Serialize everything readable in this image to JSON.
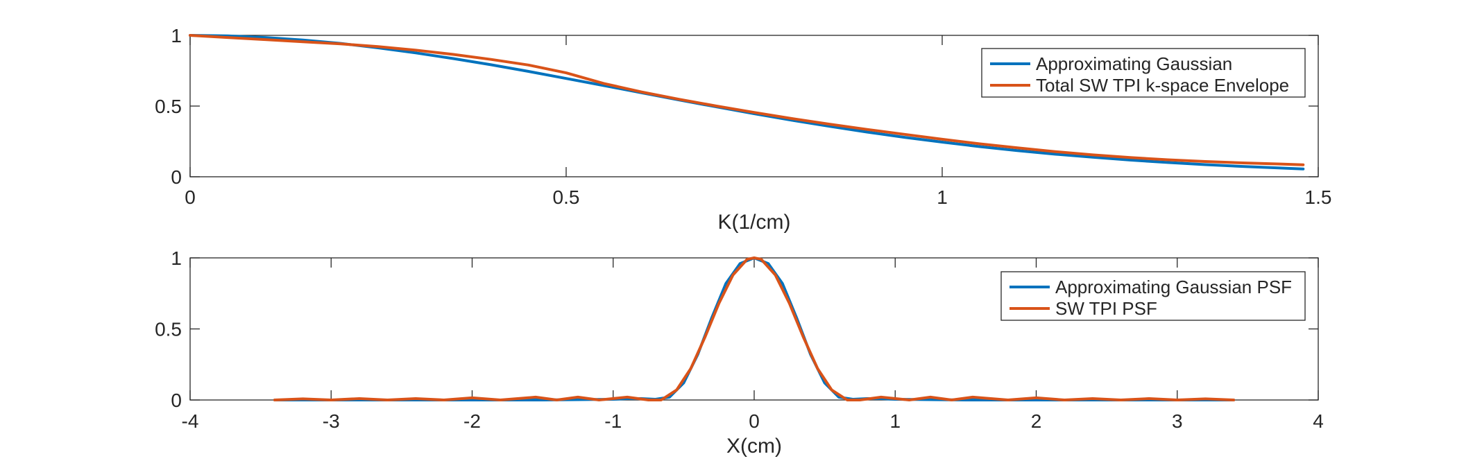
{
  "colors": {
    "blue": "#0072BD",
    "orange": "#D95319",
    "axis": "#262626",
    "background": "#ffffff"
  },
  "chart_data": [
    {
      "type": "line",
      "xlabel": "K(1/cm)",
      "ylabel": "",
      "xlim": [
        0,
        1.5
      ],
      "ylim": [
        0,
        1
      ],
      "xticks": [
        0,
        0.5,
        1,
        1.5
      ],
      "xtick_labels": [
        "0",
        "0.5",
        "1",
        "1.5"
      ],
      "yticks": [
        0,
        0.5,
        1
      ],
      "ytick_labels": [
        "0",
        "0.5",
        "1"
      ],
      "grid": false,
      "legend_location": "top-right",
      "series": [
        {
          "name": "Approximating Gaussian",
          "color": "#0072BD",
          "x": [
            0,
            0.05,
            0.1,
            0.15,
            0.2,
            0.25,
            0.3,
            0.35,
            0.4,
            0.45,
            0.5,
            0.55,
            0.6,
            0.65,
            0.7,
            0.75,
            0.8,
            0.85,
            0.9,
            0.95,
            1.0,
            1.05,
            1.1,
            1.15,
            1.2,
            1.25,
            1.3,
            1.35,
            1.4,
            1.45,
            1.48
          ],
          "y": [
            1.0,
            0.996,
            0.985,
            0.967,
            0.943,
            0.912,
            0.876,
            0.836,
            0.792,
            0.745,
            0.695,
            0.645,
            0.594,
            0.543,
            0.494,
            0.446,
            0.4,
            0.357,
            0.316,
            0.279,
            0.245,
            0.213,
            0.185,
            0.16,
            0.138,
            0.118,
            0.101,
            0.086,
            0.073,
            0.062,
            0.055
          ]
        },
        {
          "name": "Total SW TPI k-space Envelope",
          "color": "#D95319",
          "x": [
            0,
            0.05,
            0.1,
            0.15,
            0.2,
            0.25,
            0.3,
            0.35,
            0.4,
            0.45,
            0.5,
            0.55,
            0.6,
            0.65,
            0.7,
            0.75,
            0.8,
            0.85,
            0.9,
            0.95,
            1.0,
            1.05,
            1.1,
            1.15,
            1.2,
            1.25,
            1.3,
            1.35,
            1.4,
            1.45,
            1.48
          ],
          "y": [
            1.0,
            0.985,
            0.97,
            0.955,
            0.94,
            0.92,
            0.895,
            0.865,
            0.83,
            0.79,
            0.735,
            0.66,
            0.6,
            0.548,
            0.5,
            0.455,
            0.412,
            0.372,
            0.335,
            0.3,
            0.265,
            0.233,
            0.205,
            0.178,
            0.155,
            0.136,
            0.12,
            0.108,
            0.098,
            0.09,
            0.085
          ]
        }
      ]
    },
    {
      "type": "line",
      "xlabel": "X(cm)",
      "ylabel": "",
      "xlim": [
        -4,
        4
      ],
      "ylim": [
        0,
        1
      ],
      "xticks": [
        -4,
        -3,
        -2,
        -1,
        0,
        1,
        2,
        3,
        4
      ],
      "xtick_labels": [
        "-4",
        "-3",
        "-2",
        "-1",
        "0",
        "1",
        "2",
        "3",
        "4"
      ],
      "yticks": [
        0,
        0.5,
        1
      ],
      "ytick_labels": [
        "0",
        "0.5",
        "1"
      ],
      "grid": false,
      "legend_location": "top-right",
      "series": [
        {
          "name": "Approximating Gaussian PSF",
          "color": "#0072BD",
          "x": [
            -3.4,
            -3.0,
            -2.5,
            -2.0,
            -1.5,
            -1.0,
            -0.9,
            -0.8,
            -0.7,
            -0.6,
            -0.5,
            -0.4,
            -0.3,
            -0.2,
            -0.1,
            0,
            0.1,
            0.2,
            0.3,
            0.4,
            0.5,
            0.6,
            0.7,
            0.8,
            0.9,
            1.0,
            1.5,
            2.0,
            2.5,
            3.0,
            3.4
          ],
          "y": [
            0,
            0,
            0,
            0,
            0,
            0.005,
            0.01,
            0.01,
            0.005,
            0.02,
            0.12,
            0.32,
            0.58,
            0.82,
            0.96,
            1.0,
            0.96,
            0.82,
            0.58,
            0.32,
            0.12,
            0.02,
            0.005,
            0.01,
            0.01,
            0.005,
            0,
            0,
            0,
            0,
            0
          ]
        },
        {
          "name": "SW TPI PSF",
          "color": "#D95319",
          "x": [
            -3.4,
            -3.2,
            -3.0,
            -2.8,
            -2.6,
            -2.4,
            -2.2,
            -2.0,
            -1.8,
            -1.55,
            -1.4,
            -1.25,
            -1.1,
            -0.9,
            -0.75,
            -0.66,
            -0.55,
            -0.45,
            -0.35,
            -0.25,
            -0.15,
            -0.05,
            0,
            0.05,
            0.15,
            0.25,
            0.35,
            0.45,
            0.55,
            0.66,
            0.75,
            0.9,
            1.1,
            1.25,
            1.4,
            1.55,
            1.8,
            2.0,
            2.2,
            2.4,
            2.6,
            2.8,
            3.0,
            3.2,
            3.4
          ],
          "y": [
            0.0,
            0.008,
            0.0,
            0.01,
            0.0,
            0.01,
            0.0,
            0.015,
            0.0,
            0.02,
            0.0,
            0.02,
            0.0,
            0.02,
            0.0,
            0.0,
            0.07,
            0.22,
            0.44,
            0.68,
            0.88,
            0.99,
            1.0,
            0.99,
            0.88,
            0.68,
            0.44,
            0.22,
            0.07,
            0.0,
            0.0,
            0.02,
            0.0,
            0.02,
            0.0,
            0.02,
            0.0,
            0.015,
            0.0,
            0.01,
            0.0,
            0.01,
            0.0,
            0.008,
            0.0
          ]
        }
      ]
    }
  ]
}
